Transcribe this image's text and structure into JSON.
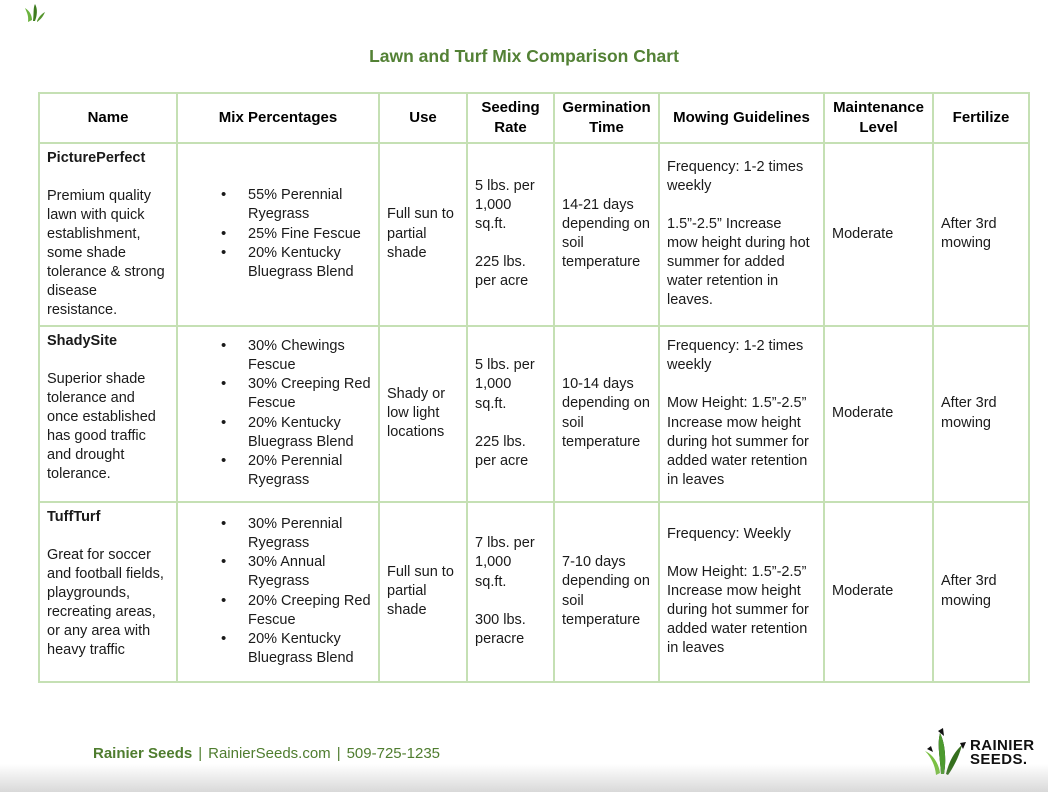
{
  "page": {
    "title": "Lawn and Turf Mix Comparison Chart"
  },
  "colors": {
    "accent_green": "#538135",
    "border_green": "#c5e0b4",
    "footer_green": "#4f7d2f",
    "text": "#1a1a1a"
  },
  "table": {
    "headers": [
      "Name",
      "Mix Percentages",
      "Use",
      "Seeding Rate",
      "Germination Time",
      "Mowing Guidelines",
      "Maintenance Level",
      "Fertilize"
    ],
    "rows": [
      {
        "name": "PicturePerfect",
        "description": "Premium quality lawn with quick establishment, some shade tolerance & strong disease resistance.",
        "mix": [
          "55% Perennial Ryegrass",
          "25% Fine Fescue",
          "20% Kentucky Bluegrass Blend"
        ],
        "use": "Full sun to partial shade",
        "seeding": [
          "5 lbs. per 1,000 sq.ft.",
          "225 lbs. per acre"
        ],
        "germination": "14-21 days depending on soil temperature",
        "mowing": [
          "Frequency: 1-2 times weekly",
          "1.5”-2.5” Increase mow height during hot summer for added water retention in leaves."
        ],
        "maintenance": "Moderate",
        "fertilize": "After 3rd mowing"
      },
      {
        "name": "ShadySite",
        "description": "Superior shade tolerance and once established has good traffic and drought tolerance.",
        "mix": [
          "30% Chewings Fescue",
          "30% Creeping Red Fescue",
          "20% Kentucky Bluegrass Blend",
          "20% Perennial Ryegrass"
        ],
        "use": "Shady or low light locations",
        "seeding": [
          "5 lbs. per 1,000 sq.ft.",
          "225 lbs. per acre"
        ],
        "germination": "10-14 days depending on soil temperature",
        "mowing": [
          "Frequency: 1-2 times weekly",
          "Mow Height: 1.5”-2.5” Increase mow height during hot summer for added water retention in leaves"
        ],
        "maintenance": "Moderate",
        "fertilize": "After 3rd mowing"
      },
      {
        "name": "TuffTurf",
        "description": "Great for soccer and football fields, playgrounds, recreating areas, or any area with heavy traffic",
        "mix": [
          "30% Perennial Ryegrass",
          "30% Annual Ryegrass",
          "20% Creeping Red Fescue",
          "20% Kentucky Bluegrass Blend"
        ],
        "use": "Full sun to partial shade",
        "seeding": [
          "7 lbs. per 1,000 sq.ft.",
          "300 lbs. peracre"
        ],
        "germination": "7-10 days depending on soil temperature",
        "mowing": [
          "Frequency: Weekly",
          "Mow Height: 1.5”-2.5” Increase mow height during hot summer for added water retention in leaves"
        ],
        "maintenance": "Moderate",
        "fertilize": "After 3rd mowing"
      }
    ]
  },
  "footer": {
    "brand": "Rainier Seeds",
    "separator": "|",
    "website": "RainierSeeds.com",
    "phone": "509-725-1235",
    "logo_line1": "RAINIER",
    "logo_line2": "SEEDS."
  }
}
